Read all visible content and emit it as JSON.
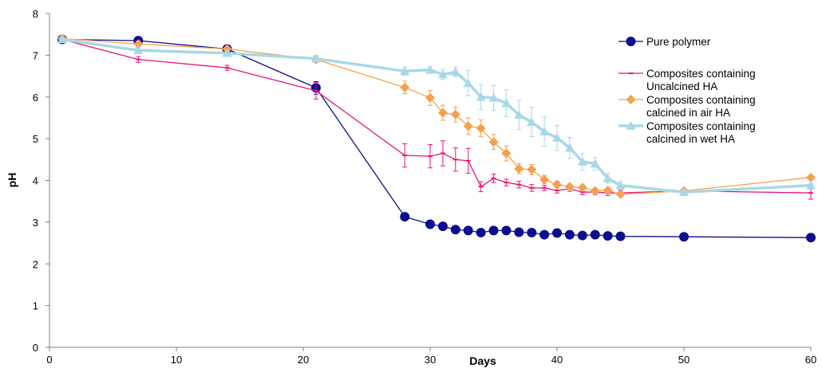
{
  "chart_data": {
    "type": "line",
    "xlabel": "Days",
    "ylabel": "pH",
    "xlim": [
      0,
      60
    ],
    "ylim": [
      0,
      8
    ],
    "xticks": [
      "0",
      "10",
      "20",
      "30",
      "40",
      "50",
      "60"
    ],
    "yticks": [
      "0",
      "1",
      "2",
      "3",
      "4",
      "5",
      "6",
      "7",
      "8"
    ],
    "grid": false,
    "legend_position": "right",
    "series": [
      {
        "name": "Pure polymer",
        "legend_lines": [
          "Pure polymer"
        ],
        "color": "#0d0d8f",
        "marker": "circle",
        "x": [
          1,
          7,
          14,
          21,
          28,
          30,
          31,
          32,
          33,
          34,
          35,
          36,
          37,
          38,
          39,
          40,
          41,
          42,
          43,
          44,
          45,
          50,
          60
        ],
        "y": [
          7.38,
          7.35,
          7.15,
          6.22,
          3.13,
          2.95,
          2.9,
          2.82,
          2.8,
          2.75,
          2.8,
          2.8,
          2.76,
          2.75,
          2.7,
          2.74,
          2.7,
          2.68,
          2.7,
          2.67,
          2.66,
          2.65,
          2.63
        ],
        "err": [
          0.05,
          0.05,
          0.05,
          0.15,
          0.05,
          0.05,
          0.05,
          0.05,
          0.05,
          0.05,
          0.05,
          0.05,
          0.05,
          0.05,
          0.05,
          0.05,
          0.05,
          0.05,
          0.05,
          0.05,
          0.05,
          0.05,
          0.08
        ]
      },
      {
        "name": "Composites containing Uncalcined HA",
        "legend_lines": [
          "Composites containing",
          "Uncalcined HA"
        ],
        "color": "#e8147a",
        "marker": "dash",
        "x": [
          1,
          7,
          14,
          21,
          28,
          30,
          31,
          32,
          33,
          34,
          35,
          36,
          37,
          38,
          39,
          40,
          41,
          42,
          43,
          44,
          45,
          50,
          60
        ],
        "y": [
          7.38,
          6.9,
          6.7,
          6.15,
          4.6,
          4.58,
          4.65,
          4.5,
          4.47,
          3.85,
          4.05,
          3.95,
          3.9,
          3.82,
          3.82,
          3.76,
          3.8,
          3.72,
          3.72,
          3.7,
          3.7,
          3.75,
          3.7
        ],
        "err": [
          0.05,
          0.07,
          0.06,
          0.2,
          0.28,
          0.28,
          0.3,
          0.28,
          0.3,
          0.12,
          0.1,
          0.08,
          0.08,
          0.08,
          0.06,
          0.06,
          0.06,
          0.06,
          0.06,
          0.06,
          0.06,
          0.05,
          0.15
        ]
      },
      {
        "name": "Composites containing calcined in air HA",
        "legend_lines": [
          "Composites containing",
          "calcined in air HA"
        ],
        "color": "#f5a04e",
        "marker": "diamond",
        "x": [
          1,
          7,
          14,
          21,
          28,
          30,
          31,
          32,
          33,
          34,
          35,
          36,
          37,
          38,
          39,
          40,
          41,
          42,
          43,
          44,
          45,
          50,
          60
        ],
        "y": [
          7.4,
          7.27,
          7.15,
          6.9,
          6.23,
          5.98,
          5.62,
          5.58,
          5.3,
          5.25,
          4.92,
          4.65,
          4.28,
          4.26,
          4.02,
          3.9,
          3.85,
          3.83,
          3.75,
          3.76,
          3.67,
          3.75,
          4.07
        ],
        "err": [
          0.05,
          0.07,
          0.05,
          0.08,
          0.15,
          0.18,
          0.18,
          0.18,
          0.2,
          0.2,
          0.18,
          0.18,
          0.12,
          0.12,
          0.1,
          0.08,
          0.06,
          0.06,
          0.06,
          0.06,
          0.05,
          0.05,
          0.05
        ]
      },
      {
        "name": "Composites containing calcined in wet HA",
        "legend_lines": [
          "Composites containing",
          "calcined in wet HA"
        ],
        "color": "#a8d8e6",
        "marker": "triangle",
        "x": [
          1,
          7,
          14,
          21,
          28,
          30,
          31,
          32,
          33,
          34,
          35,
          36,
          37,
          38,
          39,
          40,
          41,
          42,
          43,
          44,
          45,
          50,
          60
        ],
        "y": [
          7.38,
          7.12,
          7.05,
          6.92,
          6.62,
          6.65,
          6.54,
          6.6,
          6.33,
          6.0,
          5.98,
          5.85,
          5.57,
          5.4,
          5.17,
          5.02,
          4.78,
          4.45,
          4.4,
          4.05,
          3.88,
          3.72,
          3.88
        ],
        "err": [
          0.05,
          0.06,
          0.05,
          0.08,
          0.1,
          0.08,
          0.12,
          0.12,
          0.3,
          0.3,
          0.3,
          0.32,
          0.35,
          0.35,
          0.35,
          0.3,
          0.25,
          0.2,
          0.15,
          0.12,
          0.1,
          0.05,
          0.05
        ]
      }
    ]
  }
}
